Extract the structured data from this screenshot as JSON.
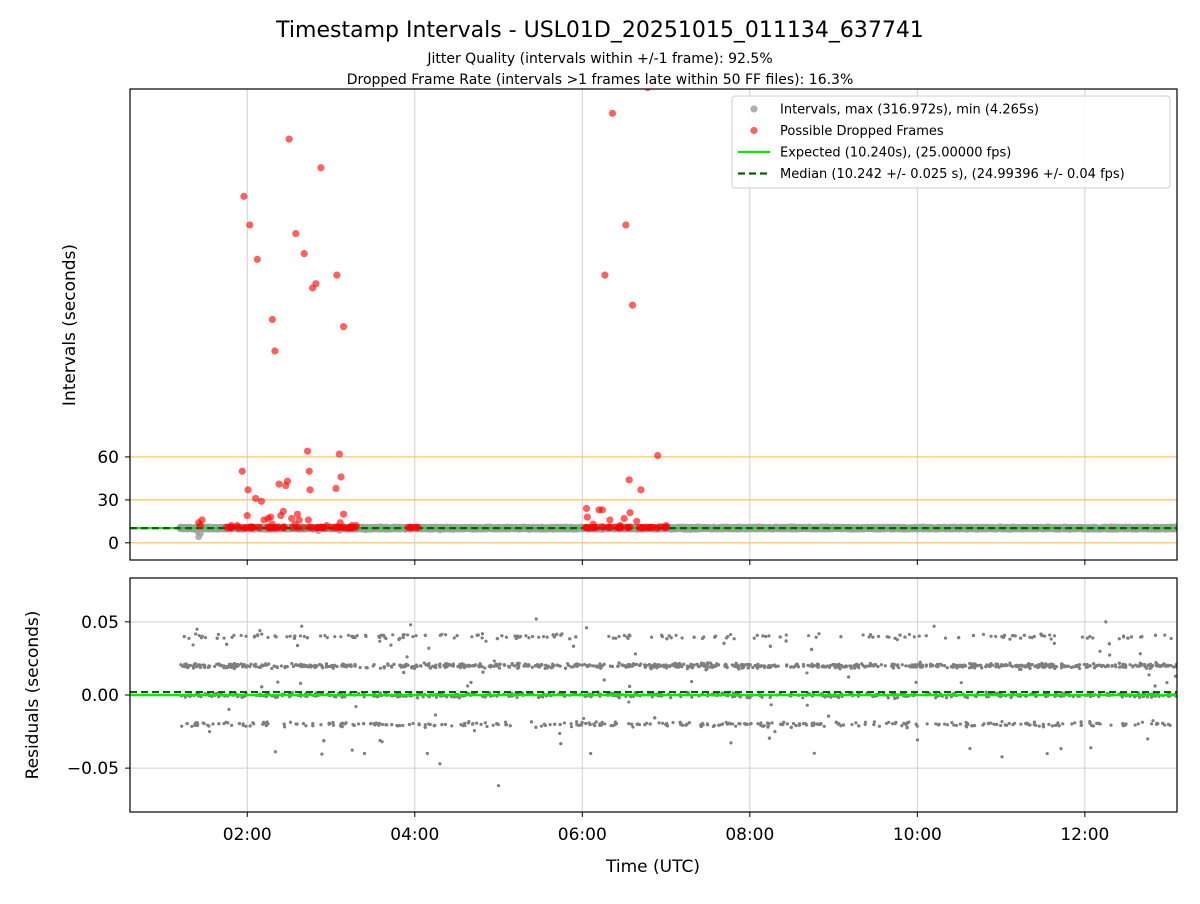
{
  "figure": {
    "title": "Timestamp Intervals - USL01D_20251015_011134_637741",
    "subtitle_1": "Jitter Quality (intervals within +/-1 frame): 92.5%",
    "subtitle_2": "Dropped Frame Rate (intervals >1 frames late within 50 FF files): 16.3%"
  },
  "colors": {
    "intervals": "#a0a0a0",
    "dropped": "#ff0000",
    "expected": "#00ee00",
    "median": "#006400",
    "threshold": "#ffc04d",
    "residual_points": "#7f7f7f",
    "grid": "#d0d0d0"
  },
  "chart_data": [
    {
      "type": "scatter",
      "name": "intervals",
      "ylabel": "Intervals (seconds)",
      "xlabel": "",
      "x_unit": "hours (UTC)",
      "xlim": [
        0.6,
        13.1
      ],
      "ylim": [
        -12,
        317
      ],
      "yticks": [
        0,
        30,
        60
      ],
      "ytick_labels": [
        "0",
        "30",
        "60"
      ],
      "xticks": [
        2,
        4,
        6,
        8,
        10,
        12
      ],
      "threshold_lines": [
        0,
        30,
        60
      ],
      "grid": "vertical",
      "legend_position": "top-right",
      "legend": [
        {
          "key": "intervals",
          "label": "Intervals, max (316.972s), min (4.265s)"
        },
        {
          "key": "dropped",
          "label": "Possible Dropped Frames"
        },
        {
          "key": "expected",
          "label": "Expected (10.240s), (25.00000 fps)"
        },
        {
          "key": "median",
          "label": "Median (10.242 +/- 0.025 s), (24.99396 +/- 0.04 fps)"
        }
      ],
      "expected_value": 10.24,
      "median_value": 10.242,
      "interval_band": {
        "x_start": 1.2,
        "x_end": 13.1,
        "y": 10.24
      },
      "interval_outliers": [
        [
          1.42,
          4.265
        ],
        [
          1.44,
          6.5
        ],
        [
          1.41,
          8.0
        ],
        [
          2.85,
          8.5
        ],
        [
          3.1,
          8.8
        ],
        [
          4.3,
          9.0
        ]
      ],
      "dropped_frames": [
        [
          1.42,
          14
        ],
        [
          1.44,
          12
        ],
        [
          1.46,
          16
        ],
        [
          1.81,
          12
        ],
        [
          1.88,
          12
        ],
        [
          1.94,
          50
        ],
        [
          1.96,
          242
        ],
        [
          2.0,
          19
        ],
        [
          2.01,
          37
        ],
        [
          2.03,
          222
        ],
        [
          2.1,
          31
        ],
        [
          2.12,
          198
        ],
        [
          2.17,
          29
        ],
        [
          2.2,
          16
        ],
        [
          2.25,
          17
        ],
        [
          2.28,
          18
        ],
        [
          2.3,
          13
        ],
        [
          2.3,
          156
        ],
        [
          2.33,
          134
        ],
        [
          2.38,
          41
        ],
        [
          2.4,
          19
        ],
        [
          2.43,
          22
        ],
        [
          2.46,
          40
        ],
        [
          2.48,
          43
        ],
        [
          2.5,
          282
        ],
        [
          2.53,
          17
        ],
        [
          2.57,
          13
        ],
        [
          2.58,
          216
        ],
        [
          2.6,
          20
        ],
        [
          2.62,
          16
        ],
        [
          2.68,
          202
        ],
        [
          2.72,
          64
        ],
        [
          2.73,
          16
        ],
        [
          2.74,
          50
        ],
        [
          2.75,
          37
        ],
        [
          2.78,
          178
        ],
        [
          2.82,
          181
        ],
        [
          2.88,
          262
        ],
        [
          2.95,
          12
        ],
        [
          3.06,
          38
        ],
        [
          3.07,
          187
        ],
        [
          3.1,
          62
        ],
        [
          3.11,
          14
        ],
        [
          3.12,
          46
        ],
        [
          3.15,
          20
        ],
        [
          3.15,
          151
        ],
        [
          3.25,
          12
        ],
        [
          3.3,
          12
        ],
        [
          6.05,
          24
        ],
        [
          6.06,
          18
        ],
        [
          6.13,
          13
        ],
        [
          6.2,
          23
        ],
        [
          6.24,
          23
        ],
        [
          6.27,
          187
        ],
        [
          6.33,
          16
        ],
        [
          6.36,
          300
        ],
        [
          6.45,
          12
        ],
        [
          6.5,
          17
        ],
        [
          6.52,
          222
        ],
        [
          6.56,
          44
        ],
        [
          6.57,
          21
        ],
        [
          6.6,
          166
        ],
        [
          6.65,
          15
        ],
        [
          6.7,
          37
        ],
        [
          6.78,
          318
        ],
        [
          6.9,
          61
        ],
        [
          7.0,
          12
        ]
      ],
      "dropped_clusters": [
        {
          "x_start": 1.75,
          "x_end": 3.3
        },
        {
          "x_start": 3.88,
          "x_end": 4.05
        },
        {
          "x_start": 6.0,
          "x_end": 7.05
        }
      ]
    },
    {
      "type": "scatter",
      "name": "residuals",
      "ylabel": "Residuals (seconds)",
      "xlabel": "Time (UTC)",
      "x_unit": "hours (UTC)",
      "xlim": [
        0.6,
        13.1
      ],
      "ylim": [
        -0.08,
        0.08
      ],
      "yticks": [
        -0.05,
        0.0,
        0.05
      ],
      "ytick_labels": [
        "−0.05",
        "0.00",
        "0.05"
      ],
      "xticks": [
        2,
        4,
        6,
        8,
        10,
        12
      ],
      "xtick_labels": [
        "02:00",
        "04:00",
        "06:00",
        "08:00",
        "10:00",
        "12:00"
      ],
      "grid": "both",
      "expected_value": 0.0,
      "median_value": 0.002,
      "x_start": 1.2,
      "x_end": 13.1,
      "bands": [
        -0.02,
        0.0,
        0.02,
        0.04
      ],
      "sample_points": [
        [
          1.4,
          0.045
        ],
        [
          1.55,
          -0.025
        ],
        [
          2.15,
          0.044
        ],
        [
          2.65,
          0.047
        ],
        [
          3.4,
          -0.04
        ],
        [
          3.95,
          0.048
        ],
        [
          4.15,
          -0.04
        ],
        [
          4.3,
          -0.047
        ],
        [
          5.0,
          -0.062
        ],
        [
          5.45,
          0.052
        ],
        [
          6.1,
          -0.04
        ],
        [
          6.05,
          0.046
        ],
        [
          8.3,
          -0.025
        ],
        [
          10.2,
          0.047
        ],
        [
          12.25,
          0.05
        ],
        [
          12.75,
          -0.03
        ]
      ]
    }
  ]
}
